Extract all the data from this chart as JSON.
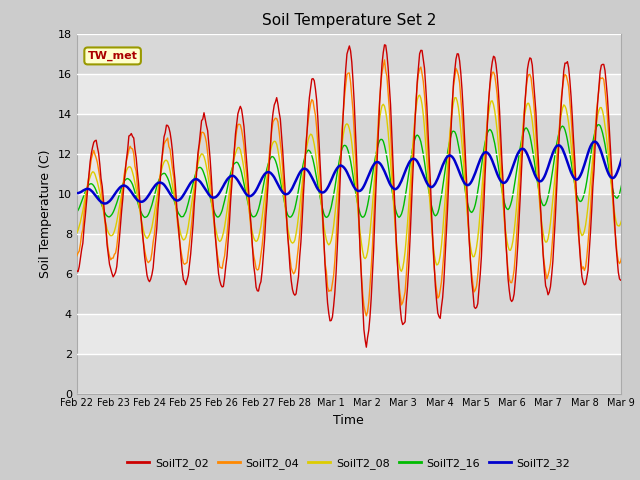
{
  "title": "Soil Temperature Set 2",
  "xlabel": "Time",
  "ylabel": "Soil Temperature (C)",
  "ylim": [
    0,
    18
  ],
  "yticks": [
    0,
    2,
    4,
    6,
    8,
    10,
    12,
    14,
    16,
    18
  ],
  "annotation": "TW_met",
  "series_colors": [
    "#cc0000",
    "#ff8800",
    "#ddcc00",
    "#00bb00",
    "#0000cc"
  ],
  "series_labels": [
    "SoilT2_02",
    "SoilT2_04",
    "SoilT2_08",
    "SoilT2_16",
    "SoilT2_32"
  ],
  "xtick_labels": [
    "Feb 22",
    "Feb 23",
    "Feb 24",
    "Feb 25",
    "Feb 26",
    "Feb 27",
    "Feb 28",
    "Mar 1",
    "Mar 2",
    "Mar 3",
    "Mar 4",
    "Mar 5",
    "Mar 6",
    "Mar 7",
    "Mar 8",
    "Mar 9"
  ],
  "n_points": 480,
  "figsize": [
    6.4,
    4.8
  ],
  "dpi": 100
}
